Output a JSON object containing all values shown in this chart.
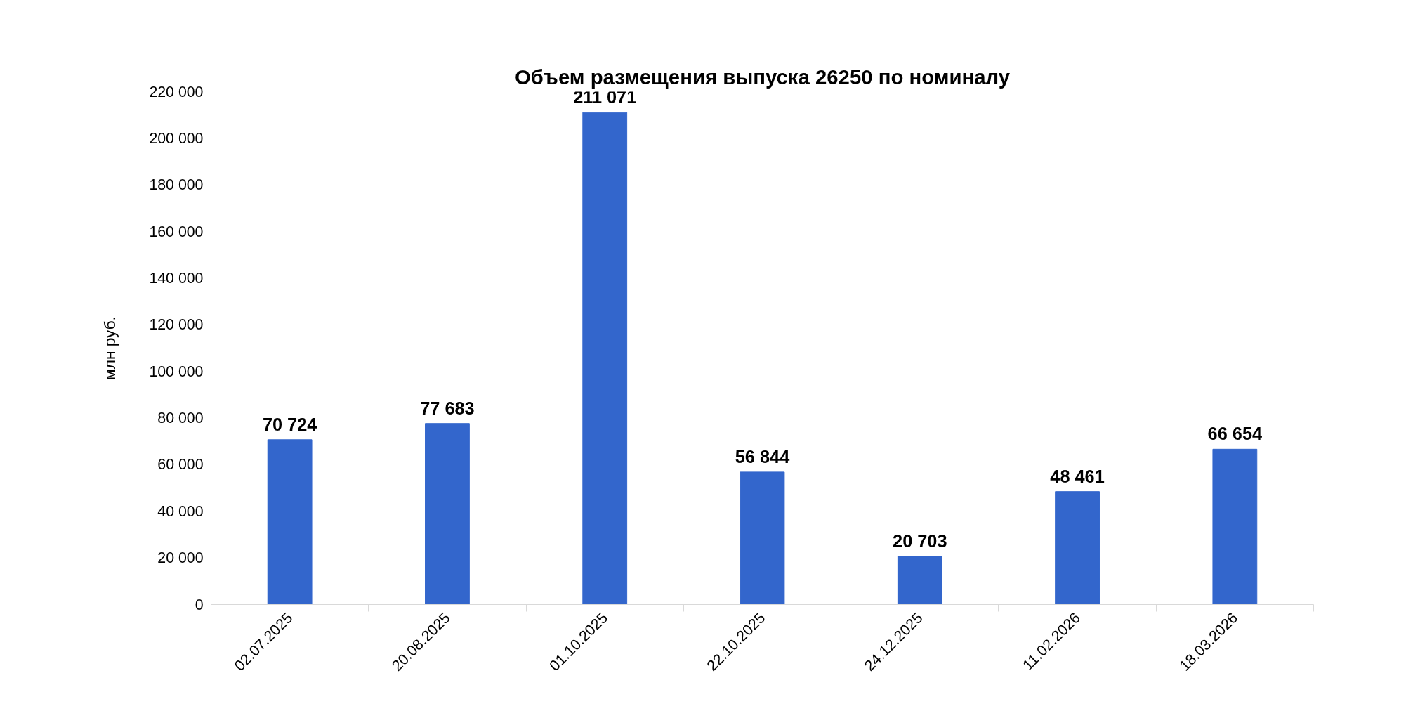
{
  "chart_data": {
    "type": "bar",
    "title": "Объем размещения выпуска 26250 по номиналу",
    "ylabel": "млн руб.",
    "categories": [
      "02.07.2025",
      "20.08.2025",
      "01.10.2025",
      "22.10.2025",
      "24.12.2025",
      "11.02.2026",
      "18.03.2026"
    ],
    "values": [
      70724,
      77683,
      211071,
      56844,
      20703,
      48461,
      66654
    ],
    "value_labels": [
      "70 724",
      "77 683",
      "211 071",
      "56 844",
      "20 703",
      "48 461",
      "66 654"
    ],
    "color": "#3366cc",
    "ylim": [
      0,
      220000
    ],
    "yticks": [
      {
        "value": 0,
        "label": "0"
      },
      {
        "value": 20000,
        "label": "20 000"
      },
      {
        "value": 40000,
        "label": "40 000"
      },
      {
        "value": 60000,
        "label": "60 000"
      },
      {
        "value": 80000,
        "label": "80 000"
      },
      {
        "value": 100000,
        "label": "100 000"
      },
      {
        "value": 120000,
        "label": "120 000"
      },
      {
        "value": 140000,
        "label": "140 000"
      },
      {
        "value": 160000,
        "label": "160 000"
      },
      {
        "value": 180000,
        "label": "180 000"
      },
      {
        "value": 200000,
        "label": "200 000"
      },
      {
        "value": 220000,
        "label": "220 000"
      }
    ],
    "grid": false
  }
}
